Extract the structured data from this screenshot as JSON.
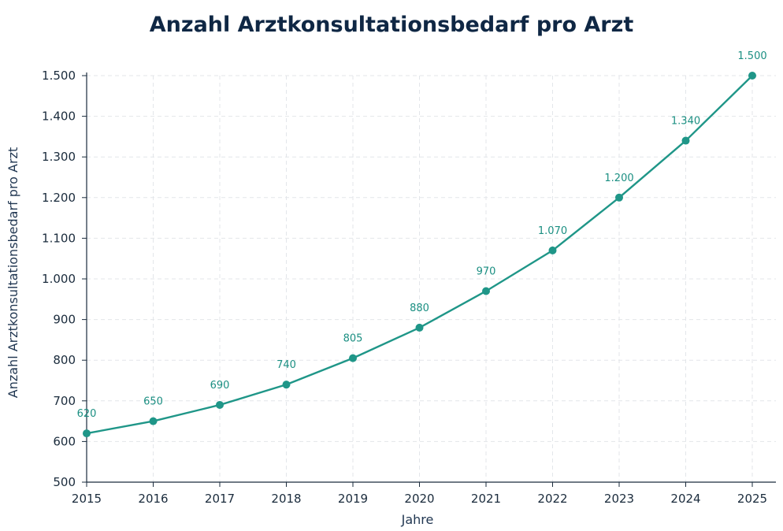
{
  "chart_data": {
    "type": "line",
    "title": "Anzahl Arztkonsultationsbedarf pro Arzt",
    "xlabel": "Jahre",
    "ylabel": "Anzahl Arztkonsultationsbedarf pro Arzt",
    "x": [
      "2015",
      "2016",
      "2017",
      "2018",
      "2019",
      "2020",
      "2021",
      "2022",
      "2023",
      "2024",
      "2025"
    ],
    "series": [
      {
        "values": [
          620,
          650,
          690,
          740,
          805,
          880,
          970,
          1070,
          1200,
          1340,
          1500
        ],
        "labels": [
          "620",
          "650",
          "690",
          "740",
          "805",
          "880",
          "970",
          "1.070",
          "1.200",
          "1.340",
          "1.500"
        ],
        "color": "#1f9688"
      }
    ],
    "ylim": [
      500,
      1500
    ],
    "yticks": [
      500,
      600,
      700,
      800,
      900,
      1000,
      1100,
      1200,
      1300,
      1400,
      1500
    ],
    "ytick_labels": [
      "500",
      "600",
      "700",
      "800",
      "900",
      "1.000",
      "1.100",
      "1.200",
      "1.300",
      "1.400",
      "1.500"
    ],
    "grid": true,
    "legend": "none"
  }
}
